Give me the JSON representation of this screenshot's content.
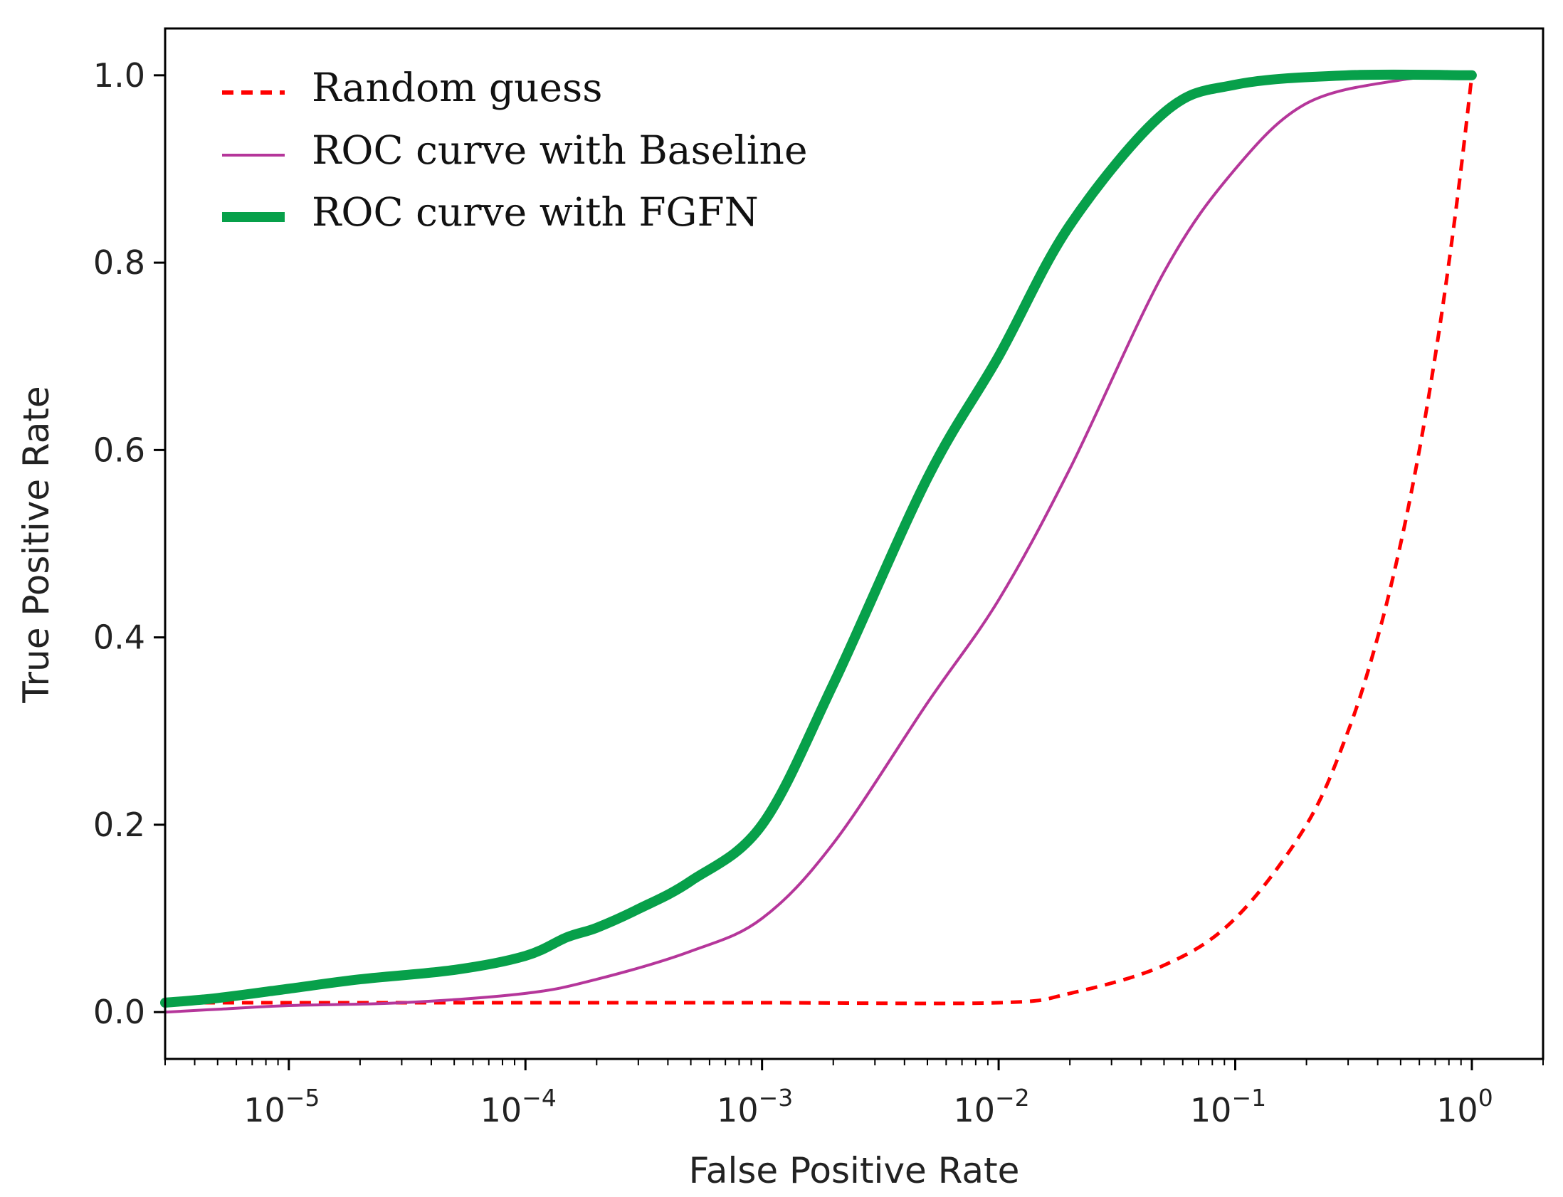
{
  "chart_data": {
    "type": "line",
    "title": "",
    "xlabel": "False Positive Rate",
    "ylabel": "True Positive Rate",
    "xscale": "log",
    "xlim": [
      3e-06,
      2
    ],
    "ylim": [
      -0.05,
      1.05
    ],
    "xticks": [
      {
        "value": 1e-05,
        "base": "10",
        "exp": "−5"
      },
      {
        "value": 0.0001,
        "base": "10",
        "exp": "−4"
      },
      {
        "value": 0.001,
        "base": "10",
        "exp": "−3"
      },
      {
        "value": 0.01,
        "base": "10",
        "exp": "−2"
      },
      {
        "value": 0.1,
        "base": "10",
        "exp": "−1"
      },
      {
        "value": 1,
        "base": "10",
        "exp": "0"
      }
    ],
    "yticks": [
      {
        "value": 0.0,
        "label": "0.0"
      },
      {
        "value": 0.2,
        "label": "0.2"
      },
      {
        "value": 0.4,
        "label": "0.4"
      },
      {
        "value": 0.6,
        "label": "0.6"
      },
      {
        "value": 0.8,
        "label": "0.8"
      },
      {
        "value": 1.0,
        "label": "1.0"
      }
    ],
    "legend_position": "top-left",
    "series": [
      {
        "name": "Random guess",
        "color": "#ff0000",
        "style": "dashed",
        "points": [
          [
            3e-06,
            0.01
          ],
          [
            1e-05,
            0.01
          ],
          [
            0.0001,
            0.01
          ],
          [
            0.001,
            0.01
          ],
          [
            0.01,
            0.01
          ],
          [
            0.02,
            0.02
          ],
          [
            0.05,
            0.05
          ],
          [
            0.1,
            0.1
          ],
          [
            0.2,
            0.2
          ],
          [
            0.3,
            0.3
          ],
          [
            0.4,
            0.4
          ],
          [
            0.5,
            0.5
          ],
          [
            0.6,
            0.6
          ],
          [
            0.7,
            0.7
          ],
          [
            0.8,
            0.8
          ],
          [
            0.9,
            0.9
          ],
          [
            1.0,
            1.0
          ]
        ]
      },
      {
        "name": "ROC curve with Baseline",
        "color": "#b5369a",
        "style": "solid",
        "points": [
          [
            3e-06,
            0.0
          ],
          [
            5e-06,
            0.003
          ],
          [
            1e-05,
            0.007
          ],
          [
            3e-05,
            0.01
          ],
          [
            0.0001,
            0.02
          ],
          [
            0.0002,
            0.035
          ],
          [
            0.0005,
            0.065
          ],
          [
            0.001,
            0.1
          ],
          [
            0.002,
            0.18
          ],
          [
            0.005,
            0.33
          ],
          [
            0.01,
            0.44
          ],
          [
            0.02,
            0.58
          ],
          [
            0.05,
            0.79
          ],
          [
            0.1,
            0.9
          ],
          [
            0.2,
            0.97
          ],
          [
            0.5,
            0.995
          ],
          [
            1.0,
            1.0
          ]
        ]
      },
      {
        "name": "ROC curve with FGFN",
        "color": "#07a04a",
        "style": "thick",
        "points": [
          [
            3e-06,
            0.01
          ],
          [
            5e-06,
            0.015
          ],
          [
            1e-05,
            0.025
          ],
          [
            2e-05,
            0.035
          ],
          [
            5e-05,
            0.045
          ],
          [
            0.0001,
            0.06
          ],
          [
            0.00015,
            0.08
          ],
          [
            0.0002,
            0.09
          ],
          [
            0.0003,
            0.11
          ],
          [
            0.0005,
            0.14
          ],
          [
            0.001,
            0.2
          ],
          [
            0.002,
            0.35
          ],
          [
            0.005,
            0.57
          ],
          [
            0.01,
            0.7
          ],
          [
            0.02,
            0.84
          ],
          [
            0.05,
            0.96
          ],
          [
            0.1,
            0.99
          ],
          [
            0.3,
            1.0
          ],
          [
            1.0,
            1.0
          ]
        ]
      }
    ]
  }
}
